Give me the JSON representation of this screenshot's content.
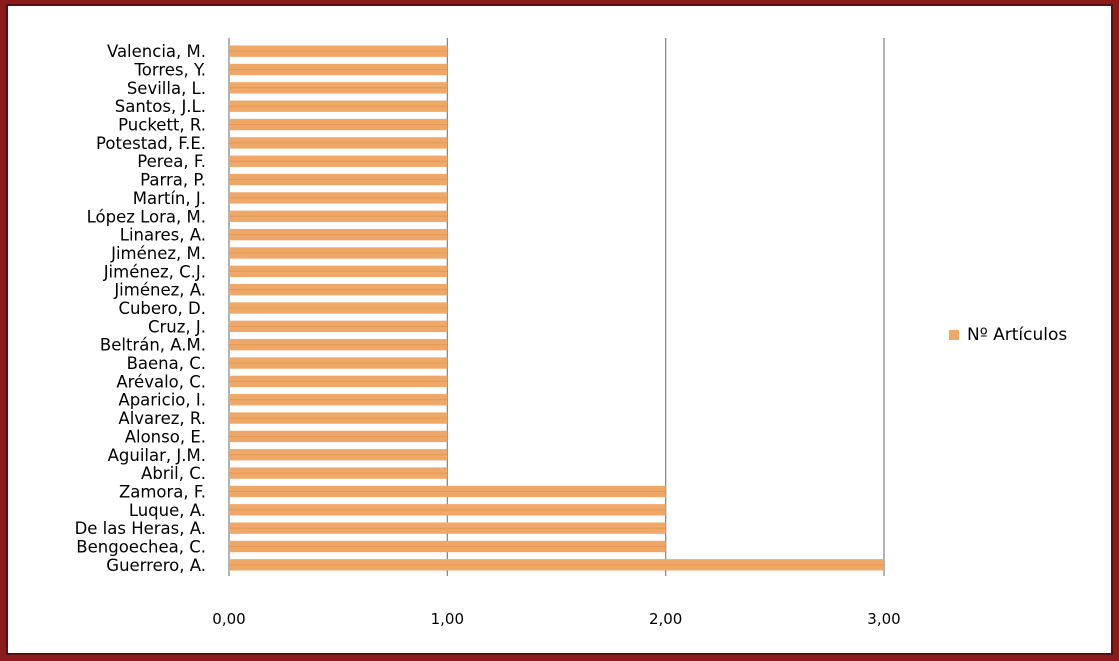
{
  "colors": {
    "bar": "#f0a868",
    "bar_stripe": "#d98a45",
    "grid": "#8a8a8a"
  },
  "legend": {
    "label": "Nº Artículos"
  },
  "chart_data": {
    "type": "bar",
    "orientation": "horizontal",
    "categories": [
      "Valencia, M.",
      "Torres, Y.",
      "Sevilla, L.",
      "Santos, J.L.",
      "Puckett, R.",
      "Potestad, F.E.",
      "Perea, F.",
      "Parra, P.",
      "Martín, J.",
      "López Lora, M.",
      "Linares, A.",
      "Jiménez, M.",
      "Jiménez, C.J.",
      "Jiménez, A.",
      "Cubero, D.",
      "Cruz, J.",
      "Beltrán, A.M.",
      "Baena, C.",
      "Arévalo, C.",
      "Aparicio, I.",
      "Alvarez, R.",
      "Alonso, E.",
      "Aguilar, J.M.",
      "Abril, C.",
      "Zamora, F.",
      "Luque, A.",
      "De las Heras, A.",
      "Bengoechea, C.",
      "Guerrero, A."
    ],
    "series": [
      {
        "name": "Nº Artículos",
        "values": [
          1,
          1,
          1,
          1,
          1,
          1,
          1,
          1,
          1,
          1,
          1,
          1,
          1,
          1,
          1,
          1,
          1,
          1,
          1,
          1,
          1,
          1,
          1,
          1,
          2,
          2,
          2,
          2,
          3
        ]
      }
    ],
    "xlim": [
      0,
      3
    ],
    "xticks": [
      0,
      1,
      2,
      3
    ],
    "xtick_labels": [
      "0,00",
      "1,00",
      "2,00",
      "3,00"
    ],
    "grid": true,
    "legend_position": "right"
  }
}
